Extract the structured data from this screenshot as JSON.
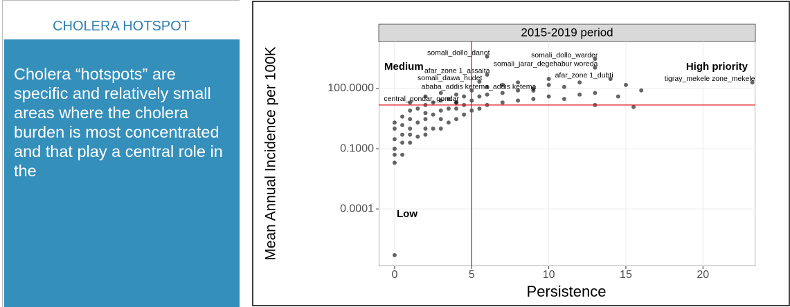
{
  "sidebar": {
    "heading": "CHOLERA HOTSPOT",
    "body": "Cholera “hotspots” are specific and relatively small areas where the cholera burden is most concentrated and that play a central role in the"
  },
  "chart_data": {
    "type": "scatter",
    "title": "2015-2019 period",
    "x_label": "Persistence",
    "y_label": "Mean Annual Incidence per 100K",
    "log_y": true,
    "grid": true,
    "color": "#000000",
    "xlim": [
      -1.03,
      23.4
    ],
    "xticks": [
      0,
      5,
      10,
      15,
      20
    ],
    "ylim": [
      1.4e-07,
      22000
    ],
    "yticks": [
      {
        "value": 0.0001,
        "label": "0.0001"
      },
      {
        "value": 0.1,
        "label": "0.1000"
      },
      {
        "value": 100,
        "label": "100.0000"
      }
    ],
    "reference_lines": {
      "x": 5,
      "y": 15,
      "color": "#e0191c"
    },
    "annotations": [
      "Medium",
      "High priority",
      "Low"
    ],
    "x": [
      6,
      13,
      13,
      6,
      5.5,
      14,
      23.2,
      9,
      4,
      0,
      0,
      0,
      0,
      0,
      0,
      0,
      0.5,
      0.5,
      0.5,
      0.5,
      0.5,
      1,
      1,
      1,
      1,
      1,
      1,
      1.5,
      1.5,
      1.5,
      2,
      2,
      2,
      2,
      2,
      2,
      2.5,
      2.5,
      2.5,
      3,
      3,
      3,
      3,
      3,
      3.5,
      3.5,
      3.5,
      4,
      4,
      4,
      4,
      4.5,
      4.5,
      4.5,
      5,
      5,
      5,
      5.5,
      5.5,
      6,
      6,
      6,
      7,
      7,
      7,
      8,
      8,
      8,
      9,
      9,
      10,
      10,
      10,
      11,
      11,
      12,
      12,
      13,
      13,
      14.5,
      15,
      15.5,
      16
    ],
    "values": [
      3900,
      3000,
      1100,
      490,
      220,
      300,
      200,
      79,
      20,
      5e-07,
      0.02,
      0.05,
      0.1,
      0.3,
      1,
      2,
      0.05,
      0.2,
      0.5,
      1.5,
      4,
      0.2,
      0.5,
      1,
      3,
      8,
      20,
      0.4,
      2,
      10,
      0.5,
      1,
      3,
      6,
      15,
      40,
      1,
      5,
      20,
      1,
      3,
      8,
      25,
      60,
      2,
      10,
      30,
      3,
      10,
      20,
      50,
      5,
      15,
      40,
      8,
      25,
      80,
      10,
      40,
      15,
      50,
      120,
      20,
      60,
      150,
      25,
      80,
      200,
      30,
      100,
      40,
      150,
      300,
      30,
      120,
      50,
      200,
      15,
      60,
      40,
      150,
      12,
      80
    ],
    "point_labels": [
      "somali_dollo_danot",
      "somali_dollo_warder",
      "somali_jarar_degehabur woreda",
      "afar_zone 1_assaita",
      "somali_dawa_hudet",
      "afar_zone 1_dubti",
      "tigray_mekele zone_mekele",
      "ababa_addis ketema_addis ketema",
      "central_gondar_gondar",
      null,
      null,
      null,
      null,
      null,
      null,
      null,
      null,
      null,
      null,
      null,
      null,
      null,
      null,
      null,
      null,
      null,
      null,
      null,
      null,
      null,
      null,
      null,
      null,
      null,
      null,
      null,
      null,
      null,
      null,
      null,
      null,
      null,
      null,
      null,
      null,
      null,
      null,
      null,
      null,
      null,
      null,
      null,
      null,
      null,
      null,
      null,
      null,
      null,
      null,
      null,
      null,
      null,
      null,
      null,
      null,
      null,
      null,
      null,
      null,
      null,
      null,
      null,
      null,
      null,
      null,
      null,
      null,
      null,
      null,
      null,
      null,
      null,
      null
    ]
  }
}
